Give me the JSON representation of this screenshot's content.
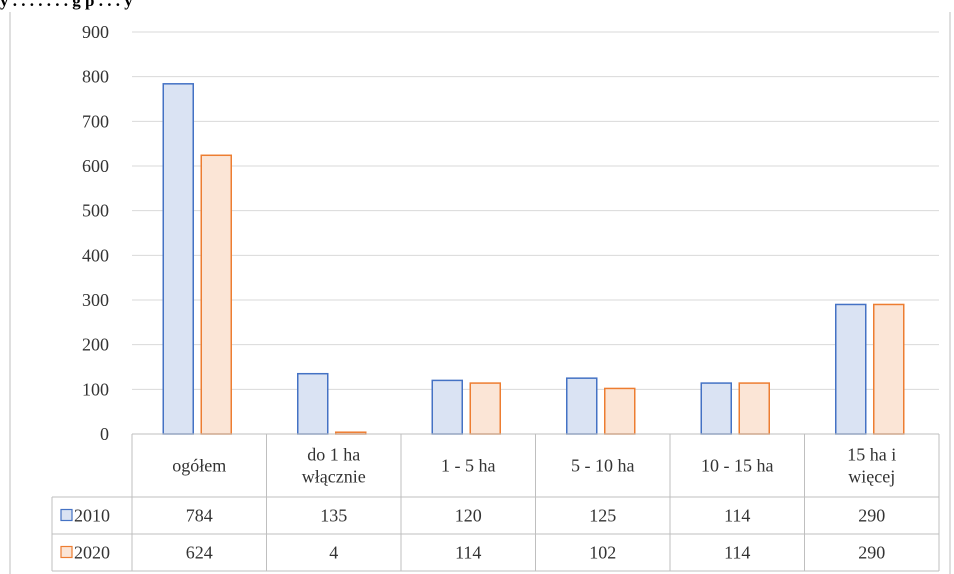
{
  "header": {
    "cut_title": "y   . . . . . . . g   p   . . .   y"
  },
  "chart_data": {
    "type": "bar",
    "title": "",
    "xlabel": "",
    "ylabel": "",
    "ylim": [
      0,
      900
    ],
    "yticks": [
      "0",
      "100",
      "200",
      "300",
      "400",
      "500",
      "600",
      "700",
      "800",
      "900"
    ],
    "grid": true,
    "legend": "table-left",
    "categories": [
      [
        "ogółem"
      ],
      [
        "do 1 ha",
        "włącznie"
      ],
      [
        "1 - 5 ha"
      ],
      [
        "5 - 10 ha"
      ],
      [
        "10 - 15 ha"
      ],
      [
        "15 ha i",
        "więcej"
      ]
    ],
    "series": [
      {
        "name": "2010",
        "values": [
          784,
          135,
          120,
          125,
          114,
          290
        ],
        "fill": "#dae3f3",
        "stroke": "#4472c4"
      },
      {
        "name": "2020",
        "values": [
          624,
          4,
          114,
          102,
          114,
          290
        ],
        "fill": "#fbe5d6",
        "stroke": "#ed7d31"
      }
    ],
    "grid_color": "#d9d9d9",
    "border_color": "#bfbfbf"
  }
}
